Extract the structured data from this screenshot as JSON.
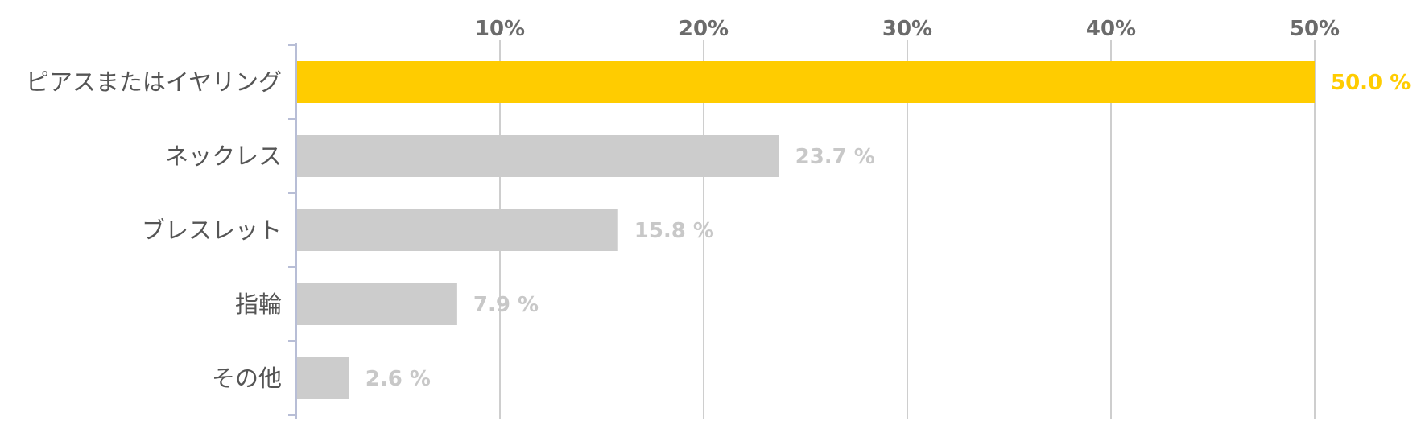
{
  "chart_data": {
    "type": "bar",
    "orientation": "horizontal",
    "categories": [
      "ピアスまたはイヤリング",
      "ネックレス",
      "ブレスレット",
      "指輪",
      "その他"
    ],
    "values": [
      50.0,
      23.7,
      15.8,
      7.9,
      2.6
    ],
    "value_labels": [
      "50.0 %",
      "23.7 %",
      "15.8 %",
      "7.9 %",
      "2.6 %"
    ],
    "xlim": [
      0,
      55
    ],
    "ticks": [
      10,
      20,
      30,
      40,
      50
    ],
    "tick_labels": [
      "10%",
      "20%",
      "30%",
      "40%",
      "50%"
    ],
    "xaxis_position": "top",
    "grid": true,
    "highlight_index": 0,
    "title": "",
    "xlabel": "",
    "ylabel": ""
  },
  "colors": {
    "highlight": "#FFCC00",
    "bar": "#CCCCCC",
    "highlight_label": "#FFCC00",
    "value_label": "#C8C8C8",
    "grid": "#BDBDBD",
    "axis": "#B8BED6",
    "tick_label": "#6B6B6B",
    "category_label": "#555555"
  }
}
